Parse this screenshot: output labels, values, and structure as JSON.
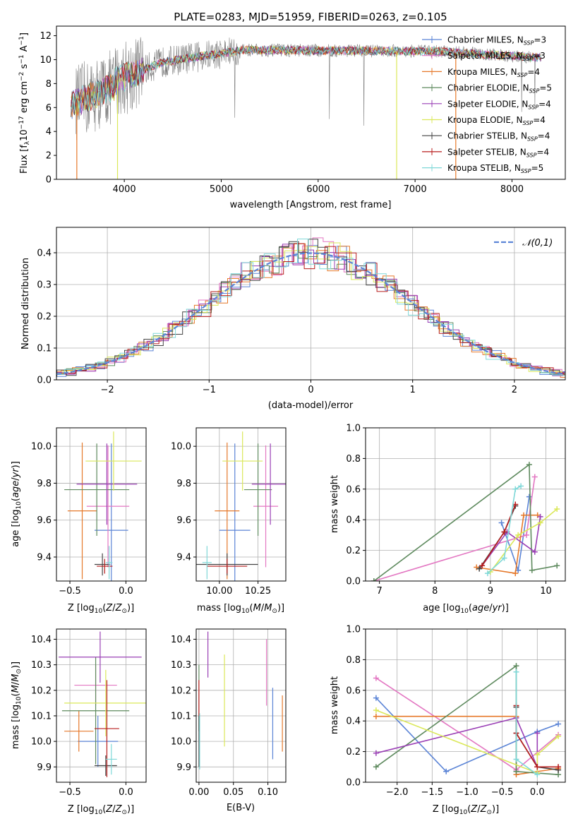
{
  "chart_data": [
    {
      "id": "spectrum",
      "type": "line",
      "title": "PLATE=0283, MJD=51959, FIBERID=0263, z=0.105",
      "xlabel": "wavelength [Angstrom, rest frame]",
      "ylabel": "Flux [f_λ10^-17 erg cm^-2 s^-1 A^-1]",
      "xlim": [
        3300,
        8550
      ],
      "ylim": [
        0,
        12.8
      ],
      "xticks": [
        4000,
        5000,
        6000,
        7000,
        8000
      ],
      "yticks": [
        0,
        2,
        4,
        6,
        8,
        10,
        12
      ],
      "grid": false,
      "legend_position": "right",
      "data_trace": {
        "color": "#808080",
        "x_range": [
          3500,
          8300
        ],
        "level": 10.5
      },
      "series": [
        {
          "name": "Chabrier MILES, N_SSP=3",
          "color": "#5b84d6"
        },
        {
          "name": "Salpeter MILES, N_SSP=3",
          "color": "#e377c2"
        },
        {
          "name": "Kroupa MILES, N_SSP=4",
          "color": "#e6792b"
        },
        {
          "name": "Chabrier ELODIE, N_SSP=5",
          "color": "#5e8a5e"
        },
        {
          "name": "Salpeter ELODIE, N_SSP=4",
          "color": "#9a3fb5"
        },
        {
          "name": "Kroupa ELODIE, N_SSP=4",
          "color": "#dbe85a"
        },
        {
          "name": "Chabrier STELIB, N_SSP=4",
          "color": "#444444"
        },
        {
          "name": "Salpeter STELIB, N_SSP=4",
          "color": "#b81d1d"
        },
        {
          "name": "Kroupa STELIB, N_SSP=5",
          "color": "#7fd8d8"
        }
      ]
    },
    {
      "id": "residuals",
      "type": "histogram",
      "xlabel": "(data-model)/error",
      "ylabel": "Normed distribution",
      "xlim": [
        -2.5,
        2.5
      ],
      "ylim": [
        0,
        0.48
      ],
      "xticks": [
        -2,
        -1,
        0,
        1,
        2
      ],
      "yticks": [
        0.0,
        0.1,
        0.2,
        0.3,
        0.4
      ],
      "grid": true,
      "legend_position": "top-right",
      "reference_curve": {
        "name": "𝒩(0,1)",
        "color": "#5b84d6",
        "style": "dashed",
        "mean": 0,
        "sigma": 1
      }
    },
    {
      "id": "age-vs-z",
      "type": "errorbar",
      "xlabel": "Z [log10(Z/Z_sun)]",
      "ylabel": "age [log10(age/yr)]",
      "xlim": [
        -0.62,
        0.18
      ],
      "ylim": [
        9.27,
        10.1
      ],
      "xticks": [
        -0.5,
        0.0
      ],
      "yticks": [
        9.4,
        9.6,
        9.8,
        10.0
      ],
      "grid": true,
      "points": [
        {
          "color": "#5b84d6",
          "x": -0.13,
          "xerr": 0.15,
          "y": 9.545,
          "yerr": 0.47
        },
        {
          "color": "#e377c2",
          "x": -0.16,
          "xerr": 0.19,
          "y": 9.675,
          "yerr": 0.33
        },
        {
          "color": "#e6792b",
          "x": -0.39,
          "xerr": 0.13,
          "y": 9.65,
          "yerr": 0.37
        },
        {
          "color": "#5e8a5e",
          "x": -0.26,
          "xerr": 0.29,
          "y": 9.765,
          "yerr": 0.25
        },
        {
          "color": "#9a3fb5",
          "x": -0.17,
          "xerr": 0.27,
          "y": 9.795,
          "yerr": 0.22
        },
        {
          "color": "#dbe85a",
          "x": -0.11,
          "xerr": 0.25,
          "y": 9.92,
          "yerr": 0.16
        },
        {
          "color": "#444444",
          "x": -0.21,
          "xerr": 0.07,
          "y": 9.36,
          "yerr": 0.06
        },
        {
          "color": "#b81d1d",
          "x": -0.19,
          "xerr": 0.07,
          "y": 9.35,
          "yerr": 0.04
        },
        {
          "color": "#7fd8d8",
          "x": -0.15,
          "xerr": 0.03,
          "y": 9.37,
          "yerr": 0.09
        }
      ]
    },
    {
      "id": "age-vs-mass",
      "type": "errorbar",
      "xlabel": "mass [log10(M/M_sun)]",
      "ylabel": "",
      "xlim": [
        9.85,
        10.43
      ],
      "ylim": [
        9.27,
        10.1
      ],
      "xticks": [
        10.0,
        10.25
      ],
      "yticks": [
        9.4,
        9.6,
        9.8,
        10.0
      ],
      "grid": true,
      "points": [
        {
          "color": "#5b84d6",
          "x": 10.1,
          "xerr": 0.1,
          "y": 9.545,
          "yerr": 0.47
        },
        {
          "color": "#e377c2",
          "x": 10.3,
          "xerr": 0.08,
          "y": 9.675,
          "yerr": 0.33
        },
        {
          "color": "#e6792b",
          "x": 10.05,
          "xerr": 0.08,
          "y": 9.65,
          "yerr": 0.37
        },
        {
          "color": "#5e8a5e",
          "x": 10.25,
          "xerr": 0.09,
          "y": 9.765,
          "yerr": 0.25
        },
        {
          "color": "#9a3fb5",
          "x": 10.33,
          "xerr": 0.12,
          "y": 9.795,
          "yerr": 0.22
        },
        {
          "color": "#dbe85a",
          "x": 10.15,
          "xerr": 0.13,
          "y": 9.92,
          "yerr": 0.16
        },
        {
          "color": "#444444",
          "x": 10.05,
          "xerr": 0.2,
          "y": 9.36,
          "yerr": 0.06
        },
        {
          "color": "#b81d1d",
          "x": 10.05,
          "xerr": 0.13,
          "y": 9.35,
          "yerr": 0.04
        },
        {
          "color": "#7fd8d8",
          "x": 9.92,
          "xerr": 0.03,
          "y": 9.37,
          "yerr": 0.09
        }
      ]
    },
    {
      "id": "mass-weight-vs-age",
      "type": "line",
      "xlabel": "age [log10(age/yr)]",
      "ylabel": "mass weight",
      "xlim": [
        6.75,
        10.35
      ],
      "ylim": [
        0,
        1.0
      ],
      "xticks": [
        7,
        8,
        9,
        10
      ],
      "yticks": [
        0.0,
        0.2,
        0.4,
        0.6,
        0.8,
        1.0
      ],
      "grid": true,
      "series": [
        {
          "color": "#5b84d6",
          "x": [
            9.2,
            9.5,
            9.7
          ],
          "y": [
            0.38,
            0.07,
            0.55
          ]
        },
        {
          "color": "#e377c2",
          "x": [
            6.9,
            9.65,
            9.8
          ],
          "y": [
            0.0,
            0.3,
            0.68
          ]
        },
        {
          "color": "#e6792b",
          "x": [
            8.75,
            9.45,
            9.6,
            9.85
          ],
          "y": [
            0.09,
            0.05,
            0.43,
            0.43
          ]
        },
        {
          "color": "#5e8a5e",
          "x": [
            6.9,
            9.7,
            9.75,
            10.2
          ],
          "y": [
            0.0,
            0.76,
            0.07,
            0.1
          ]
        },
        {
          "color": "#9a3fb5",
          "x": [
            8.85,
            9.3,
            9.8,
            9.9
          ],
          "y": [
            0.1,
            0.32,
            0.19,
            0.42
          ]
        },
        {
          "color": "#dbe85a",
          "x": [
            9.0,
            9.5,
            9.9,
            10.2
          ],
          "y": [
            0.06,
            0.3,
            0.38,
            0.47
          ]
        },
        {
          "color": "#444444",
          "x": [
            8.8,
            9.25,
            9.45
          ],
          "y": [
            0.08,
            0.32,
            0.49
          ]
        },
        {
          "color": "#b81d1d",
          "x": [
            8.85,
            9.25,
            9.45
          ],
          "y": [
            0.1,
            0.32,
            0.5
          ]
        },
        {
          "color": "#7fd8d8",
          "x": [
            8.95,
            9.25,
            9.45,
            9.55
          ],
          "y": [
            0.05,
            0.15,
            0.6,
            0.62
          ]
        }
      ]
    },
    {
      "id": "mass-vs-z",
      "type": "errorbar",
      "xlabel": "Z [log10(Z/Z_sun)]",
      "ylabel": "mass [log10(M/M_sun)]",
      "xlim": [
        -0.62,
        0.18
      ],
      "ylim": [
        9.84,
        10.44
      ],
      "xticks": [
        -0.5,
        0.0
      ],
      "yticks": [
        9.9,
        10.0,
        10.1,
        10.2,
        10.3,
        10.4
      ],
      "grid": true,
      "points": [
        {
          "color": "#5b84d6",
          "x": -0.25,
          "xerr": 0.18,
          "y": 10.0,
          "yerr": 0.1
        },
        {
          "color": "#e377c2",
          "x": -0.27,
          "xerr": 0.19,
          "y": 10.22,
          "yerr": 0.08
        },
        {
          "color": "#e6792b",
          "x": -0.42,
          "xerr": 0.13,
          "y": 10.04,
          "yerr": 0.08
        },
        {
          "color": "#5e8a5e",
          "x": -0.27,
          "xerr": 0.3,
          "y": 10.12,
          "yerr": 0.21
        },
        {
          "color": "#9a3fb5",
          "x": -0.23,
          "xerr": 0.37,
          "y": 10.33,
          "yerr": 0.1
        },
        {
          "color": "#dbe85a",
          "x": -0.18,
          "xerr": 0.37,
          "y": 10.15,
          "yerr": 0.13
        },
        {
          "color": "#444444",
          "x": -0.18,
          "xerr": 0.1,
          "y": 9.905,
          "yerr": 0.04
        },
        {
          "color": "#b81d1d",
          "x": -0.17,
          "xerr": 0.11,
          "y": 10.05,
          "yerr": 0.19
        },
        {
          "color": "#7fd8d8",
          "x": -0.13,
          "xerr": 0.05,
          "y": 9.93,
          "yerr": 0.06
        }
      ]
    },
    {
      "id": "mass-vs-ebv",
      "type": "errorbar",
      "xlabel": "E(B-V)",
      "ylabel": "",
      "xlim": [
        -0.004,
        0.126
      ],
      "ylim": [
        9.84,
        10.44
      ],
      "xticks": [
        0.0,
        0.05,
        0.1
      ],
      "yticks": [
        9.9,
        10.0,
        10.1,
        10.2,
        10.3,
        10.4
      ],
      "grid": true,
      "points": [
        {
          "color": "#5b84d6",
          "x": 0.107,
          "y": 10.07,
          "yerr": 0.14
        },
        {
          "color": "#e377c2",
          "x": 0.098,
          "y": 10.27,
          "yerr": 0.13
        },
        {
          "color": "#e6792b",
          "x": 0.121,
          "y": 10.07,
          "yerr": 0.11
        },
        {
          "color": "#5e8a5e",
          "x": 0.0,
          "y": 10.17,
          "yerr": 0.13
        },
        {
          "color": "#9a3fb5",
          "x": 0.013,
          "y": 10.34,
          "yerr": 0.09
        },
        {
          "color": "#dbe85a",
          "x": 0.037,
          "y": 10.16,
          "yerr": 0.18
        },
        {
          "color": "#444444",
          "x": 0.0,
          "y": 10.0,
          "yerr": 0.1
        },
        {
          "color": "#b81d1d",
          "x": 0.0,
          "y": 10.17,
          "yerr": 0.07
        },
        {
          "color": "#7fd8d8",
          "x": 0.001,
          "y": 10.0,
          "yerr": 0.11
        }
      ]
    },
    {
      "id": "mass-weight-vs-z",
      "type": "line",
      "xlabel": "Z [log10(Z/Z_sun)]",
      "ylabel": "mass weight",
      "xlim": [
        -2.45,
        0.4
      ],
      "ylim": [
        0,
        1.0
      ],
      "xticks": [
        -2.0,
        -1.5,
        -1.0,
        -0.5,
        0.0
      ],
      "yticks": [
        0.0,
        0.2,
        0.4,
        0.6,
        0.8,
        1.0
      ],
      "grid": true,
      "series": [
        {
          "color": "#5b84d6",
          "x": [
            -2.3,
            -1.3,
            0.0,
            0.3
          ],
          "y": [
            0.55,
            0.07,
            0.33,
            0.38
          ]
        },
        {
          "color": "#e377c2",
          "x": [
            -2.3,
            -0.3,
            0.3
          ],
          "y": [
            0.68,
            0.08,
            0.31
          ]
        },
        {
          "color": "#e6792b",
          "x": [
            -2.3,
            -0.3,
            -0.3,
            0.3
          ],
          "y": [
            0.43,
            0.43,
            0.05,
            0.09
          ]
        },
        {
          "color": "#5e8a5e",
          "x": [
            -2.3,
            -0.3,
            -0.3,
            0.3
          ],
          "y": [
            0.1,
            0.76,
            0.07,
            0.05
          ]
        },
        {
          "color": "#9a3fb5",
          "x": [
            -2.3,
            -0.3,
            0.0,
            0.0
          ],
          "y": [
            0.19,
            0.42,
            0.1,
            0.32
          ]
        },
        {
          "color": "#dbe85a",
          "x": [
            -2.3,
            0.0,
            0.0,
            0.3
          ],
          "y": [
            0.47,
            0.06,
            0.18,
            0.3
          ]
        },
        {
          "color": "#444444",
          "x": [
            -0.3,
            -0.3,
            0.0,
            0.3
          ],
          "y": [
            0.49,
            0.32,
            0.1,
            0.08
          ]
        },
        {
          "color": "#b81d1d",
          "x": [
            -0.3,
            -0.3,
            0.0,
            0.3
          ],
          "y": [
            0.5,
            0.32,
            0.1,
            0.1
          ]
        },
        {
          "color": "#7fd8d8",
          "x": [
            -0.3,
            -0.3,
            0.0
          ],
          "y": [
            0.72,
            0.15,
            0.05
          ]
        }
      ]
    }
  ]
}
